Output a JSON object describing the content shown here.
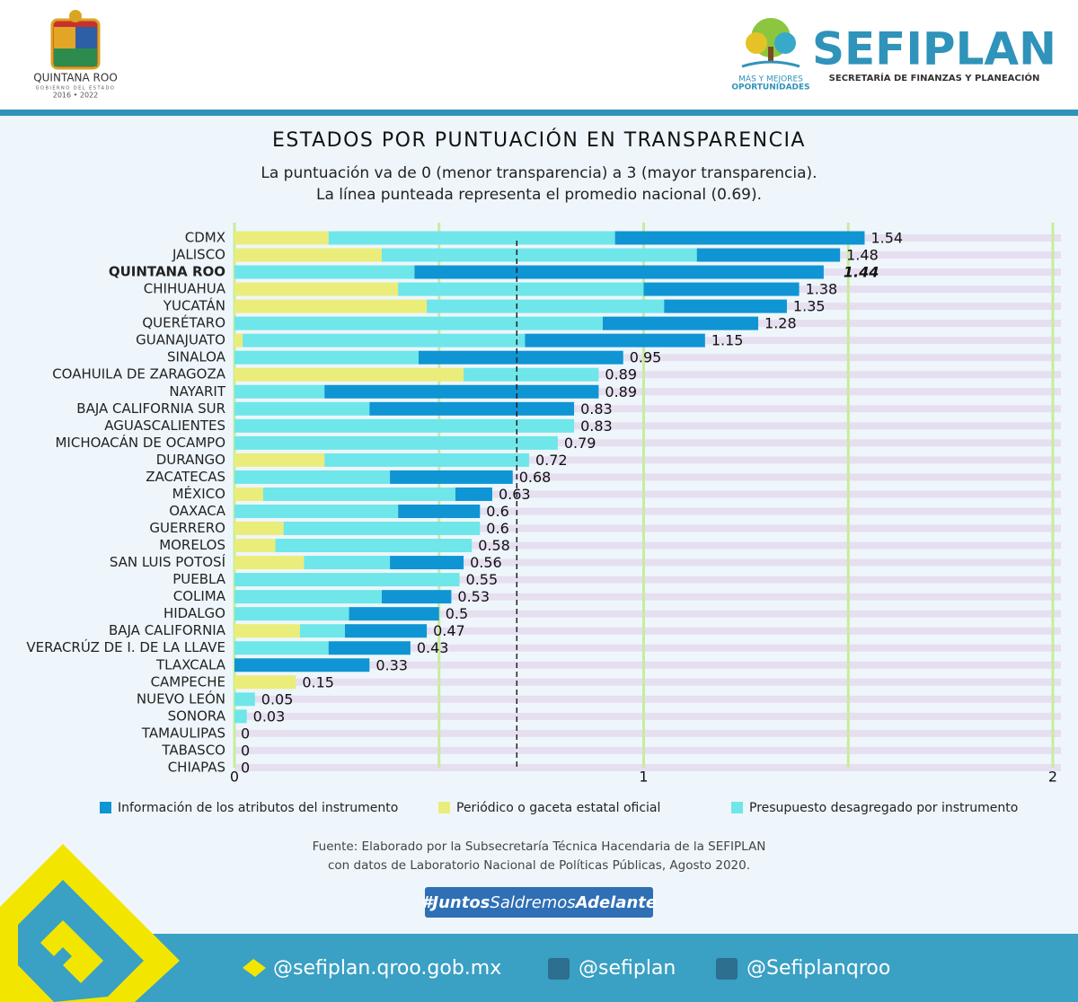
{
  "header": {
    "state": "QUINTANA ROO",
    "government": "GOBIERNO DEL ESTADO",
    "period": "2016 • 2022",
    "slogan_top": "MÁS Y MEJORES",
    "slogan_bottom": "OPORTUNIDADES",
    "brand": "SEFIPLAN",
    "brand_subtitle": "SECRETARÍA DE FINANZAS Y PLANEACIÓN"
  },
  "chart_data": {
    "type": "stacked-barh",
    "title": "ESTADOS POR PUNTUACIÓN EN TRANSPARENCIA",
    "subtitle": [
      "La puntuación va de 0 (menor transparencia) a 3 (mayor transparencia).",
      "La línea punteada representa el promedio nacional (0.69)."
    ],
    "categories": [
      "CDMX",
      "JALISCO",
      "QUINTANA ROO",
      "CHIHUAHUA",
      "YUCATÁN",
      "QUERÉTARO",
      "GUANAJUATO",
      "SINALOA",
      "COAHUILA DE ZARAGOZA",
      "NAYARIT",
      "BAJA CALIFORNIA SUR",
      "AGUASCALIENTES",
      "MICHOACÁN DE OCAMPO",
      "DURANGO",
      "ZACATECAS",
      "MÉXICO",
      "OAXACA",
      "GUERRERO",
      "MORELOS",
      "SAN LUIS POTOSÍ",
      "PUEBLA",
      "COLIMA",
      "HIDALGO",
      "BAJA CALIFORNIA",
      "VERACRÚZ DE I. DE LA LLAVE",
      "TLAXCALA",
      "CAMPECHE",
      "NUEVO LEÓN",
      "SONORA",
      "TAMAULIPAS",
      "TABASCO",
      "CHIAPAS"
    ],
    "series": [
      {
        "name": "Información de los atributos del instrumento",
        "color": "#0f95d3",
        "values": [
          0.61,
          0.35,
          1.0,
          0.38,
          0.3,
          0.38,
          0.44,
          0.5,
          0,
          0.67,
          0.5,
          0,
          0,
          0,
          0.3,
          0.09,
          0.2,
          0,
          0,
          0.18,
          0,
          0.17,
          0.22,
          0.2,
          0.2,
          0.33,
          0,
          0,
          0,
          0,
          0,
          0
        ]
      },
      {
        "name": "Periódico o gaceta estatal oficial",
        "color": "#eaed7a",
        "values": [
          0.23,
          0.36,
          0,
          0.4,
          0.47,
          0,
          0.02,
          0,
          0.56,
          0,
          0,
          0,
          0,
          0.22,
          0,
          0.07,
          0,
          0.12,
          0.1,
          0.17,
          0,
          0,
          0,
          0.16,
          0,
          0,
          0.15,
          0,
          0,
          0,
          0,
          0
        ]
      },
      {
        "name": "Presupuesto desagregado por instrumento",
        "color": "#6ee6ea",
        "values": [
          0.7,
          0.77,
          0.44,
          0.6,
          0.58,
          0.9,
          0.69,
          0.45,
          0.33,
          0.22,
          0.33,
          0.83,
          0.79,
          0.5,
          0.38,
          0.47,
          0.4,
          0.48,
          0.48,
          0.21,
          0.55,
          0.36,
          0.28,
          0.11,
          0.23,
          0,
          0,
          0.05,
          0.03,
          0,
          0,
          0
        ]
      }
    ],
    "totals": [
      1.54,
      1.48,
      1.44,
      1.38,
      1.35,
      1.28,
      1.15,
      0.95,
      0.89,
      0.89,
      0.83,
      0.83,
      0.79,
      0.72,
      0.68,
      0.63,
      0.6,
      0.6,
      0.58,
      0.56,
      0.55,
      0.53,
      0.5,
      0.47,
      0.43,
      0.33,
      0.15,
      0.05,
      0.03,
      0,
      0,
      0
    ],
    "highlight_index": 2,
    "highlight_color": "#0b3a7e",
    "average": 0.69,
    "xlim": [
      0,
      2
    ],
    "xticks": [
      0,
      1,
      2
    ],
    "grid_lines": [
      0,
      0.5,
      1,
      1.5,
      2
    ],
    "grid_color": "#c8ec9c"
  },
  "footer": {
    "source": [
      "Fuente: Elaborado por la Subsecretaría Técnica Hacendaria de la SEFIPLAN",
      "con datos de Laboratorio Nacional de Políticas Públicas, Agosto 2020."
    ],
    "hashtag": [
      "#Juntos",
      "Saldremos",
      "Adelante"
    ],
    "social": [
      "@sefiplan.qroo.gob.mx",
      "@sefiplan",
      "@Sefiplanqroo"
    ]
  }
}
